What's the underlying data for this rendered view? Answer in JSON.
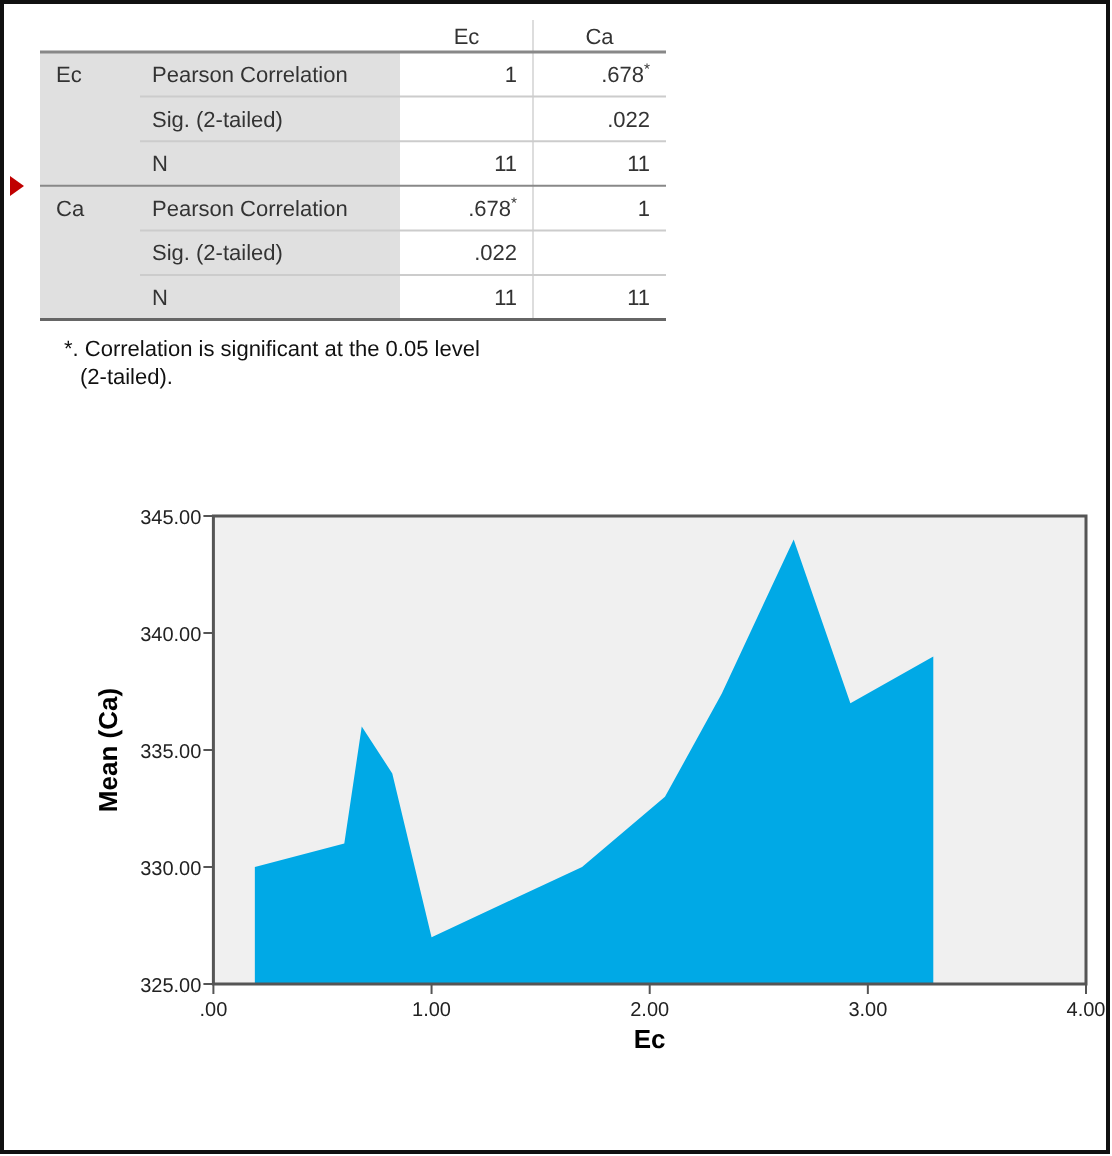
{
  "chart_data": [
    {
      "type": "other",
      "categories": [
        "Ec",
        "Ca"
      ],
      "y_categories": [
        "Pearson Correlation",
        "Sig. (2-tailed)",
        "N",
        "Pearson Correlation",
        "Sig. (2-tailed)",
        "N"
      ],
      "y2_categories": [
        "Ec",
        null,
        null,
        "Ca",
        null,
        null
      ],
      "cell_labels": [
        [
          "1",
          ".678$^{*}$"
        ],
        [
          null,
          ".022"
        ],
        [
          "11",
          "11"
        ],
        [
          ".678$^{*}$",
          "1"
        ],
        [
          ".022",
          null
        ],
        [
          "11",
          "11"
        ]
      ],
      "annotations": [
        "*. Correlation is significant at the 0.05 level (2-tailed)."
      ]
    },
    {
      "type": "area",
      "xlabel": "Ec",
      "ylabel": "Mean (Ca)",
      "color": "#00a9e6",
      "x": [
        0.19,
        0.6,
        0.68,
        0.82,
        1.0,
        1.69,
        2.07,
        2.33,
        2.66,
        2.92,
        3.3
      ],
      "values": [
        330,
        331,
        336,
        334,
        327,
        330,
        333,
        337.4,
        344,
        337,
        339
      ],
      "xlim": [
        0,
        4
      ],
      "xticks": [
        {
          "value": 0,
          "label": ".00"
        },
        {
          "value": 1,
          "label": "1.00"
        },
        {
          "value": 2,
          "label": "2.00"
        },
        {
          "value": 3,
          "label": "3.00"
        },
        {
          "value": 4,
          "label": "4.00"
        }
      ],
      "ylim": [
        325,
        345
      ],
      "yticks": [
        {
          "value": 325,
          "label": "325.00"
        },
        {
          "value": 330,
          "label": "330.00"
        },
        {
          "value": 335,
          "label": "335.00"
        },
        {
          "value": 340,
          "label": "340.00"
        },
        {
          "value": 345,
          "label": "345.00"
        }
      ],
      "grid": false
    }
  ]
}
